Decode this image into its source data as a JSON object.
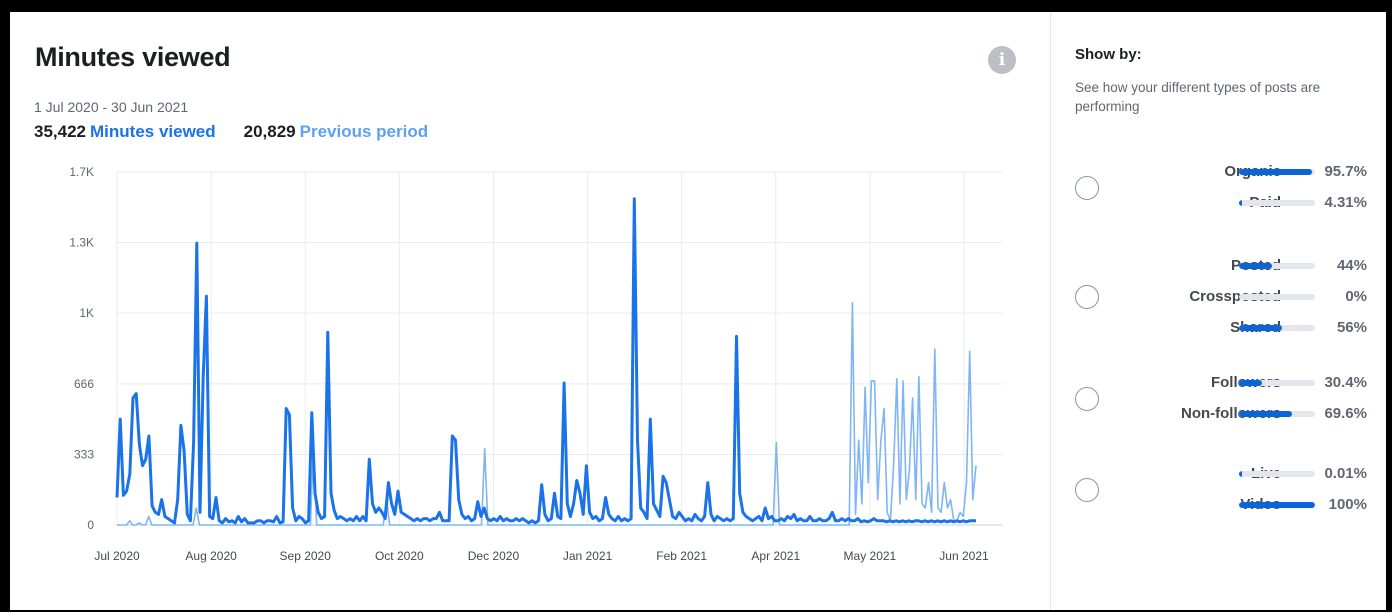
{
  "header": {
    "title": "Minutes viewed",
    "date_range": "1 Jul 2020 - 30 Jun 2021",
    "current_value": "35,422",
    "current_label": "Minutes viewed",
    "previous_value": "20,829",
    "previous_label": "Previous period",
    "info_icon": "info-icon"
  },
  "colors": {
    "current": "#1a73e8",
    "previous": "#7fb5f5",
    "bar": "#0a66d8"
  },
  "chart_data": {
    "type": "line",
    "x_labels": [
      "Jul 2020",
      "Aug 2020",
      "Sep 2020",
      "Oct 2020",
      "Dec 2020",
      "Jan 2021",
      "Feb 2021",
      "Apr 2021",
      "May 2021",
      "Jun 2021"
    ],
    "y_ticks": [
      "0",
      "333",
      "666",
      "1K",
      "1.3K",
      "1.7K"
    ],
    "y_tick_values": [
      0,
      333,
      666,
      1000,
      1333,
      1666
    ],
    "ylim": [
      0,
      1666
    ],
    "grid": true,
    "series": [
      {
        "name": "Minutes viewed",
        "values": [
          130,
          500,
          140,
          160,
          240,
          600,
          620,
          380,
          280,
          310,
          420,
          90,
          60,
          50,
          120,
          40,
          30,
          20,
          10,
          120,
          470,
          350,
          50,
          20,
          390,
          1330,
          60,
          700,
          1080,
          40,
          30,
          130,
          20,
          10,
          30,
          15,
          20,
          10,
          40,
          15,
          30,
          10,
          10,
          10,
          20,
          20,
          10,
          20,
          20,
          15,
          40,
          10,
          15,
          550,
          520,
          80,
          20,
          40,
          30,
          10,
          20,
          530,
          150,
          60,
          30,
          40,
          910,
          150,
          70,
          30,
          40,
          30,
          20,
          30,
          20,
          40,
          20,
          40,
          20,
          310,
          100,
          60,
          80,
          60,
          30,
          200,
          100,
          50,
          160,
          60,
          50,
          40,
          30,
          20,
          30,
          20,
          30,
          30,
          20,
          30,
          30,
          60,
          20,
          20,
          20,
          420,
          400,
          120,
          50,
          30,
          40,
          20,
          30,
          110,
          40,
          80,
          30,
          20,
          30,
          20,
          40,
          20,
          30,
          20,
          20,
          30,
          20,
          30,
          20,
          10,
          20,
          10,
          20,
          190,
          50,
          20,
          30,
          150,
          40,
          30,
          670,
          100,
          40,
          100,
          210,
          150,
          50,
          280,
          60,
          30,
          40,
          20,
          30,
          130,
          50,
          30,
          20,
          40,
          20,
          30,
          20,
          30,
          1540,
          400,
          80,
          60,
          30,
          500,
          100,
          70,
          40,
          230,
          200,
          120,
          40,
          30,
          60,
          40,
          20,
          30,
          20,
          50,
          30,
          20,
          40,
          200,
          50,
          20,
          40,
          30,
          20,
          30,
          20,
          30,
          890,
          150,
          60,
          40,
          30,
          20,
          30,
          40,
          20,
          80,
          30,
          40,
          20,
          20,
          30,
          20,
          40,
          30,
          50,
          20,
          30,
          20,
          20,
          40,
          20,
          20,
          30,
          20,
          20,
          30,
          60,
          20,
          20,
          30,
          20,
          30,
          20,
          20,
          30,
          15,
          20,
          15,
          20,
          30,
          20,
          20,
          20,
          15,
          20,
          15,
          20,
          15,
          20,
          15,
          20,
          15,
          20,
          20,
          15,
          20,
          15,
          20,
          15,
          20,
          15,
          20,
          15,
          20,
          15,
          20,
          15,
          20,
          15,
          20,
          20,
          20
        ]
      },
      {
        "name": "Previous period",
        "values": [
          0,
          0,
          0,
          0,
          20,
          0,
          0,
          10,
          0,
          0,
          40,
          0,
          0,
          0,
          0,
          0,
          0,
          0,
          0,
          0,
          0,
          0,
          0,
          0,
          0,
          80,
          0,
          0,
          0,
          0,
          0,
          0,
          0,
          0,
          0,
          0,
          0,
          0,
          0,
          0,
          0,
          0,
          0,
          0,
          0,
          0,
          0,
          0,
          0,
          0,
          0,
          0,
          0,
          0,
          0,
          0,
          0,
          0,
          0,
          0,
          0,
          0,
          380,
          0,
          0,
          0,
          0,
          0,
          0,
          0,
          0,
          0,
          0,
          0,
          0,
          0,
          0,
          0,
          0,
          0,
          0,
          0,
          0,
          0,
          0,
          130,
          0,
          0,
          0,
          0,
          0,
          0,
          0,
          0,
          0,
          0,
          0,
          0,
          0,
          0,
          0,
          0,
          0,
          0,
          0,
          0,
          0,
          0,
          0,
          0,
          0,
          0,
          0,
          0,
          0,
          0,
          360,
          0,
          0,
          0,
          0,
          0,
          0,
          0,
          0,
          0,
          0,
          0,
          0,
          0,
          0,
          0,
          0,
          0,
          0,
          0,
          0,
          0,
          0,
          0,
          0,
          0,
          0,
          0,
          0,
          0,
          0,
          0,
          0,
          0,
          0,
          0,
          0,
          0,
          0,
          0,
          0,
          0,
          0,
          0,
          0,
          0,
          0,
          0,
          0,
          0,
          0,
          0,
          0,
          0,
          0,
          0,
          0,
          0,
          0,
          0,
          0,
          0,
          0,
          0,
          0,
          0,
          0,
          0,
          0,
          0,
          0,
          0,
          0,
          0,
          0,
          0,
          0,
          0,
          0,
          0,
          0,
          0,
          0,
          0,
          0,
          0,
          0,
          0,
          0,
          0,
          0,
          0,
          390,
          0,
          0,
          0,
          0,
          0,
          0,
          0,
          0,
          0,
          0,
          0,
          0,
          0,
          0,
          0,
          0,
          0,
          0,
          0,
          0,
          0,
          0,
          0,
          1050,
          50,
          400,
          100,
          650,
          200,
          680,
          680,
          120,
          400,
          550,
          60,
          20,
          280,
          690,
          100,
          680,
          120,
          260,
          600,
          120,
          700,
          100,
          80,
          200,
          60,
          830,
          80,
          60,
          200,
          80,
          120,
          20,
          20,
          60,
          40,
          200,
          820,
          120,
          280
        ]
      }
    ]
  },
  "showby": {
    "title": "Show by:",
    "description": "See how your different types of posts are performing",
    "groups": [
      {
        "radio_name": "organic-paid",
        "rows": [
          {
            "label": "Organic",
            "value": "95.7%",
            "fraction": 0.957
          },
          {
            "label": "Paid",
            "value": "4.31%",
            "fraction": 0.0431
          }
        ]
      },
      {
        "radio_name": "posted-crossposted-shared",
        "rows": [
          {
            "label": "Posted",
            "value": "44%",
            "fraction": 0.44
          },
          {
            "label": "Crossposted",
            "value": "0%",
            "fraction": 0
          },
          {
            "label": "Shared",
            "value": "56%",
            "fraction": 0.56
          }
        ]
      },
      {
        "radio_name": "followers",
        "rows": [
          {
            "label": "Followers",
            "value": "30.4%",
            "fraction": 0.304
          },
          {
            "label": "Non-followers",
            "value": "69.6%",
            "fraction": 0.696
          }
        ]
      },
      {
        "radio_name": "live-video",
        "rows": [
          {
            "label": "Live",
            "value": "0.01%",
            "fraction": 0.0001
          },
          {
            "label": "Video",
            "value": "100%",
            "fraction": 1.0
          }
        ]
      }
    ]
  }
}
